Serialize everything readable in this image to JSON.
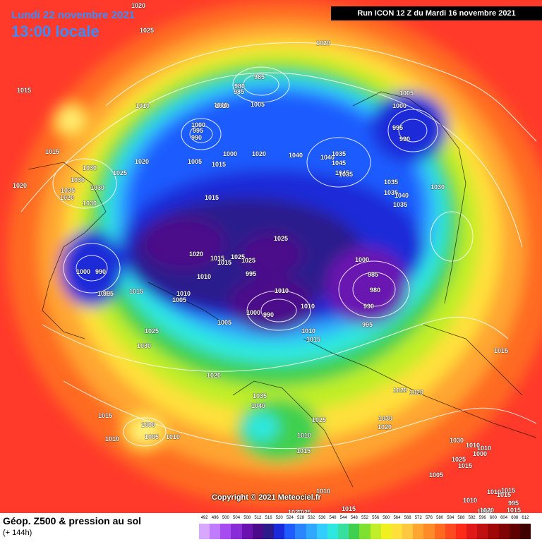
{
  "header": {
    "date": "Lundi 22 novembre 2021",
    "time": "13:00 locale",
    "run": "Run ICON 12 Z du Mardi 16 novembre 2021"
  },
  "copyright": "Copyright © 2021 Meteociel.fr",
  "footer": {
    "title": "Géop. Z500 & pression au sol",
    "subtitle": "(+ 144h)"
  },
  "colors": {
    "background_field": "#ff3a2a",
    "isobar": "#ffffff",
    "coastline": "#000000"
  },
  "scale": {
    "values": [
      "492",
      "496",
      "500",
      "504",
      "508",
      "512",
      "516",
      "520",
      "524",
      "528",
      "532",
      "536",
      "540",
      "544",
      "548",
      "552",
      "556",
      "560",
      "564",
      "568",
      "572",
      "576",
      "580",
      "584",
      "588",
      "592",
      "596",
      "600",
      "604",
      "608",
      "612"
    ],
    "colors": [
      "#d8a8ff",
      "#c07cff",
      "#a64cf0",
      "#8a2bd8",
      "#6a12b0",
      "#4b0a8a",
      "#2a1a8c",
      "#1a2ad8",
      "#1e5cff",
      "#2a86ff",
      "#31a8ff",
      "#32ccff",
      "#2ee8e0",
      "#38e0a0",
      "#40d050",
      "#80e030",
      "#c0ee28",
      "#f0f020",
      "#ffe03a",
      "#ffc840",
      "#ffa530",
      "#ff8a28",
      "#ff6a20",
      "#ff4a20",
      "#ff2a18",
      "#e01818",
      "#c01010",
      "#a00808",
      "#800404",
      "#600000",
      "#400000"
    ]
  },
  "pressure_labels": [
    "1020",
    "1025",
    "1020",
    "1010",
    "1015",
    "1005",
    "1015",
    "1010",
    "1000",
    "995",
    "990",
    "985",
    "980",
    "985",
    "1005",
    "1000",
    "995",
    "990",
    "1000",
    "1005",
    "1020",
    "1040",
    "1040",
    "1035",
    "1045",
    "1045",
    "1035",
    "1015",
    "1010",
    "1015",
    "1020",
    "1030",
    "1030",
    "1035",
    "1030",
    "1025",
    "1020",
    "1020",
    "1030",
    "1035",
    "1035",
    "1040",
    "1035",
    "1030",
    "1025",
    "1010",
    "1015",
    "1005",
    "1010",
    "1015",
    "1025",
    "995",
    "990",
    "1000",
    "1010",
    "1005",
    "1020",
    "1015",
    "1025",
    "1010",
    "1000",
    "980",
    "985",
    "990",
    "995",
    "1000",
    "990",
    "995",
    "1005",
    "1010",
    "1015",
    "1030",
    "1025",
    "1020",
    "1035",
    "1040",
    "1025",
    "1030",
    "1015",
    "1020",
    "1010",
    "1010",
    "1000",
    "1005",
    "1010",
    "1010",
    "1015",
    "1020",
    "1025",
    "1020",
    "1020",
    "1015",
    "1030",
    "1025",
    "1015",
    "1005",
    "1010",
    "1015",
    "1000",
    "995",
    "1005",
    "1010",
    "1015",
    "1010",
    "1020",
    "1010",
    "1015",
    "1015"
  ]
}
